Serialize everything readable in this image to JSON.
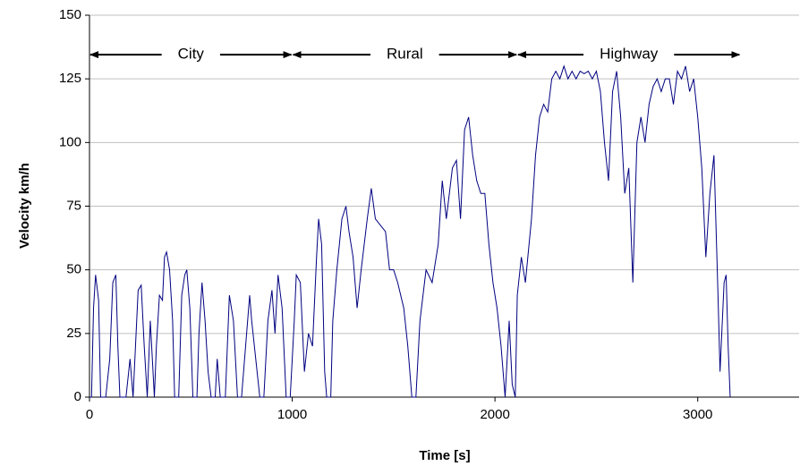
{
  "chart_data": {
    "type": "line",
    "x_label": "Time [s]",
    "y_label": "Velocity km/h",
    "xlim": [
      0,
      3500
    ],
    "xticks": [
      0,
      1000,
      2000,
      3000
    ],
    "ylim": [
      0,
      150
    ],
    "yticks": [
      0,
      25,
      50,
      75,
      100,
      125,
      150
    ],
    "grid": true,
    "annotations": [
      {
        "text": "City",
        "x": [
          0,
          1000
        ]
      },
      {
        "text": "Rural",
        "x": [
          1000,
          2110
        ]
      },
      {
        "text": "Highway",
        "x": [
          2110,
          3210
        ]
      }
    ],
    "x": [
      0,
      10,
      20,
      30,
      45,
      55,
      80,
      100,
      115,
      130,
      140,
      150,
      180,
      200,
      215,
      240,
      255,
      270,
      285,
      300,
      320,
      330,
      345,
      360,
      370,
      380,
      395,
      410,
      420,
      440,
      455,
      470,
      480,
      495,
      510,
      530,
      540,
      555,
      570,
      585,
      600,
      620,
      630,
      645,
      670,
      690,
      710,
      730,
      750,
      770,
      790,
      800,
      820,
      840,
      860,
      880,
      900,
      915,
      930,
      950,
      970,
      990,
      1010,
      1020,
      1040,
      1060,
      1080,
      1100,
      1120,
      1130,
      1145,
      1160,
      1170,
      1190,
      1200,
      1220,
      1245,
      1265,
      1280,
      1300,
      1320,
      1340,
      1370,
      1390,
      1410,
      1430,
      1460,
      1480,
      1500,
      1520,
      1550,
      1570,
      1590,
      1610,
      1630,
      1660,
      1690,
      1720,
      1740,
      1760,
      1790,
      1810,
      1830,
      1850,
      1870,
      1890,
      1910,
      1930,
      1950,
      1970,
      1990,
      2010,
      2030,
      2050,
      2070,
      2085,
      2100,
      2110,
      2130,
      2150,
      2180,
      2200,
      2220,
      2240,
      2260,
      2280,
      2300,
      2320,
      2340,
      2360,
      2380,
      2400,
      2420,
      2440,
      2460,
      2480,
      2500,
      2520,
      2540,
      2560,
      2580,
      2600,
      2620,
      2640,
      2660,
      2680,
      2700,
      2720,
      2740,
      2760,
      2780,
      2800,
      2820,
      2840,
      2860,
      2880,
      2900,
      2920,
      2940,
      2960,
      2980,
      3000,
      3020,
      3040,
      3060,
      3080,
      3100,
      3110,
      3130,
      3140,
      3150,
      3160
    ],
    "series": [
      {
        "name": "Velocity",
        "color": "#000080",
        "values": [
          0,
          0,
          35,
          48,
          38,
          0,
          0,
          15,
          45,
          48,
          20,
          0,
          0,
          15,
          0,
          42,
          44,
          20,
          0,
          30,
          0,
          20,
          40,
          38,
          55,
          57,
          50,
          30,
          0,
          0,
          40,
          48,
          50,
          35,
          0,
          0,
          25,
          45,
          30,
          10,
          0,
          0,
          15,
          0,
          0,
          40,
          30,
          0,
          0,
          20,
          40,
          30,
          15,
          0,
          0,
          30,
          42,
          25,
          48,
          35,
          0,
          0,
          30,
          48,
          45,
          10,
          25,
          20,
          55,
          70,
          60,
          10,
          0,
          0,
          30,
          50,
          70,
          75,
          65,
          55,
          35,
          50,
          70,
          82,
          70,
          68,
          65,
          50,
          50,
          45,
          35,
          20,
          0,
          0,
          30,
          50,
          45,
          60,
          85,
          70,
          90,
          93,
          70,
          105,
          110,
          95,
          85,
          80,
          80,
          60,
          45,
          35,
          20,
          0,
          30,
          5,
          0,
          40,
          55,
          45,
          70,
          95,
          110,
          115,
          112,
          125,
          128,
          125,
          130,
          125,
          128,
          125,
          128,
          127,
          128,
          125,
          128,
          120,
          100,
          85,
          120,
          128,
          110,
          80,
          90,
          45,
          100,
          110,
          100,
          115,
          122,
          125,
          120,
          125,
          125,
          115,
          128,
          125,
          130,
          120,
          125,
          110,
          90,
          55,
          80,
          95,
          40,
          10,
          45,
          48,
          20,
          0
        ]
      }
    ]
  }
}
